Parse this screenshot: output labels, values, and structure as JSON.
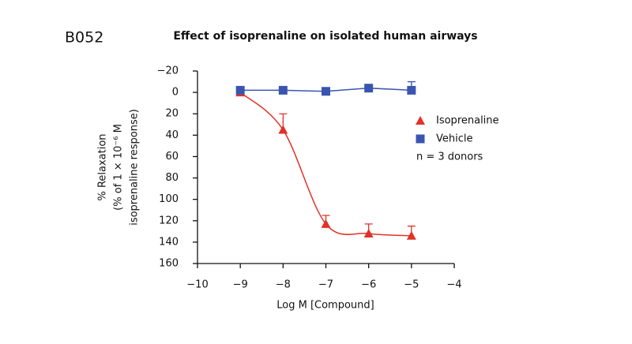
{
  "chart_data": {
    "type": "scatter-line",
    "panel_label": "B052",
    "title": "Effect of isoprenaline on  isolated human airways",
    "xlabel": "Log M [Compound]",
    "ylabel": [
      "% Relaxation",
      "(% of 1 × 10⁻⁶ M",
      "isoprenaline response)"
    ],
    "note": "n = 3 donors",
    "y_inverted": true,
    "xlim": [
      -10,
      -4
    ],
    "xticks": [
      {
        "value": -10,
        "label": "−10"
      },
      {
        "value": -9,
        "label": "−9"
      },
      {
        "value": -8,
        "label": "−8"
      },
      {
        "value": -7,
        "label": "−7"
      },
      {
        "value": -6,
        "label": "−6"
      },
      {
        "value": -5,
        "label": "−5"
      },
      {
        "value": -4,
        "label": "−4"
      }
    ],
    "ylim": [
      -20,
      160
    ],
    "yticks": [
      {
        "value": -20,
        "label": "−20"
      },
      0,
      20,
      40,
      60,
      80,
      100,
      120,
      140,
      160
    ],
    "series": [
      {
        "name": "Isoprenaline",
        "color": "#e03228",
        "marker": "triangle",
        "smooth": true,
        "x": [
          -9,
          -8,
          -7,
          -6,
          -5
        ],
        "values": [
          0,
          35,
          123,
          132,
          134
        ],
        "errors": [
          null,
          15,
          8,
          9,
          9
        ]
      },
      {
        "name": "Vehicle",
        "color": "#3a55b0",
        "marker": "square",
        "smooth": false,
        "x": [
          -9,
          -8,
          -7,
          -6,
          -5
        ],
        "values": [
          -2,
          -2,
          -1,
          -4,
          -2
        ],
        "errors": [
          null,
          null,
          null,
          null,
          8
        ]
      }
    ]
  }
}
